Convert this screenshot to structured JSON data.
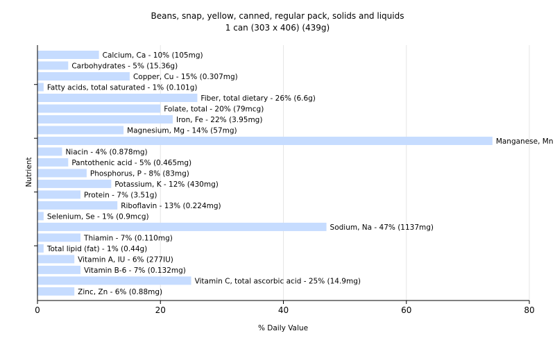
{
  "chart_data": {
    "type": "bar",
    "orientation": "horizontal",
    "title": "Beans, snap, yellow, canned, regular pack, solids and liquids",
    "subtitle": "1 can (303 x 406) (439g)",
    "xlabel": "% Daily Value",
    "ylabel": "Nutrient",
    "xlim": [
      0,
      80
    ],
    "xticks": [
      0,
      20,
      40,
      60,
      80
    ],
    "grid": true,
    "bar_color": "#c6dcff",
    "categories": [
      "Calcium, Ca",
      "Carbohydrates",
      "Copper, Cu",
      "Fatty acids, total saturated",
      "Fiber, total dietary",
      "Folate, total",
      "Iron, Fe",
      "Magnesium, Mg",
      "Manganese, Mn",
      "Niacin",
      "Pantothenic acid",
      "Phosphorus, P",
      "Potassium, K",
      "Protein",
      "Riboflavin",
      "Selenium, Se",
      "Sodium, Na",
      "Thiamin",
      "Total lipid (fat)",
      "Vitamin A, IU",
      "Vitamin B-6",
      "Vitamin C, total ascorbic acid",
      "Zinc, Zn"
    ],
    "values": [
      10,
      5,
      15,
      1,
      26,
      20,
      22,
      14,
      74,
      4,
      5,
      8,
      12,
      7,
      13,
      1,
      47,
      7,
      1,
      6,
      7,
      25,
      6
    ],
    "labels": [
      "Calcium, Ca - 10% (105mg)",
      "Carbohydrates - 5% (15.36g)",
      "Copper, Cu - 15% (0.307mg)",
      "Fatty acids, total saturated - 1% (0.101g)",
      "Fiber, total dietary - 26% (6.6g)",
      "Folate, total - 20% (79mcg)",
      "Iron, Fe - 22% (3.95mg)",
      "Magnesium, Mg - 14% (57mg)",
      "Manganese, Mn - 74% (1.471mg)",
      "Niacin - 4% (0.878mg)",
      "Pantothenic acid - 5% (0.465mg)",
      "Phosphorus, P - 8% (83mg)",
      "Potassium, K - 12% (430mg)",
      "Protein - 7% (3.51g)",
      "Riboflavin - 13% (0.224mg)",
      "Selenium, Se - 1% (0.9mcg)",
      "Sodium, Na - 47% (1137mg)",
      "Thiamin - 7% (0.110mg)",
      "Total lipid (fat) - 1% (0.44g)",
      "Vitamin A, IU - 6% (277IU)",
      "Vitamin B-6 - 7% (0.132mg)",
      "Vitamin C, total ascorbic acid - 25% (14.9mg)",
      "Zinc, Zn - 6% (0.88mg)"
    ]
  }
}
